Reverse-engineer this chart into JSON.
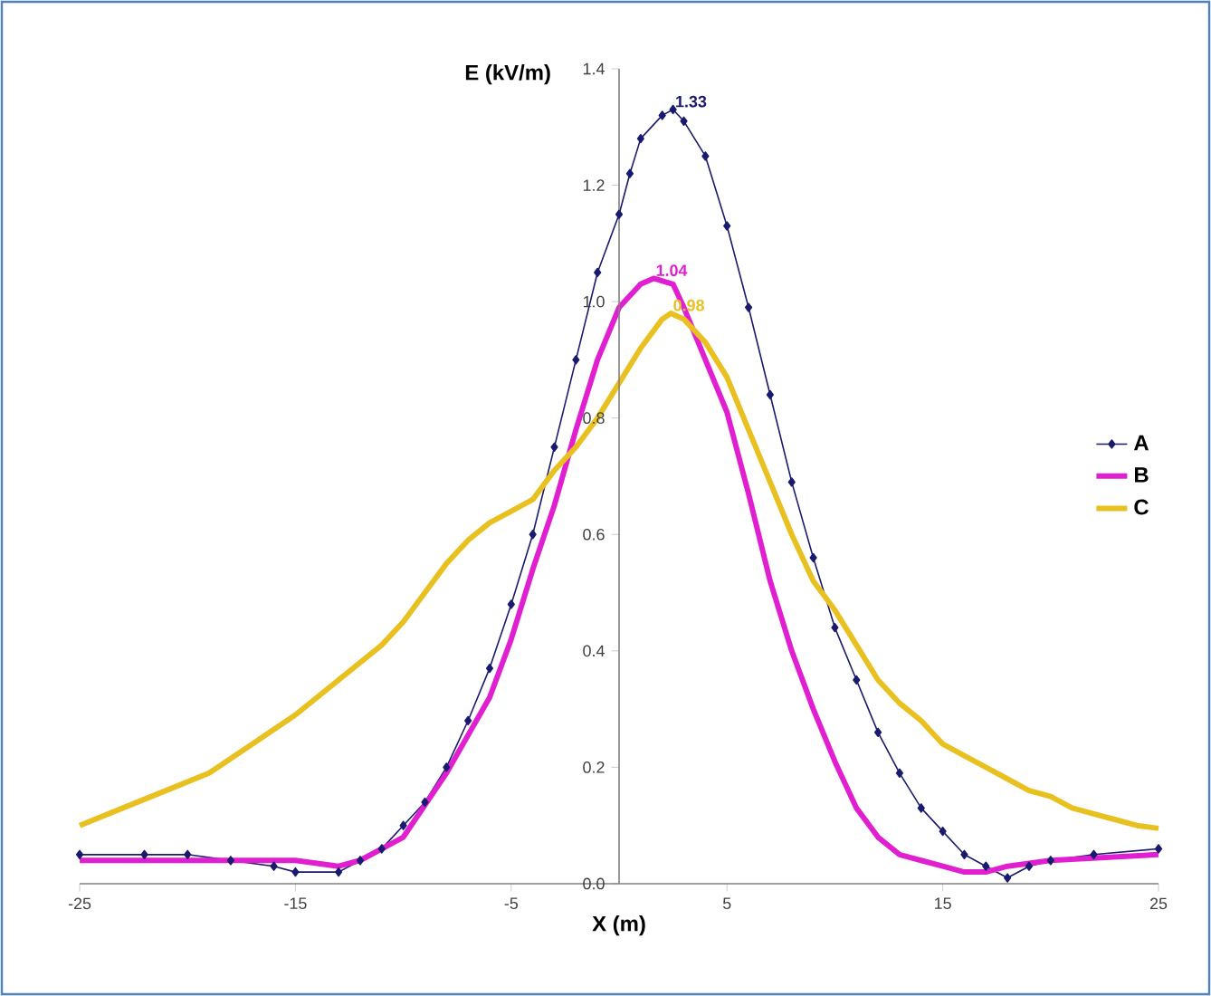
{
  "chart_data": {
    "type": "line",
    "xlabel": "X (m)",
    "ylabel": "E (kV/m)",
    "xlim": [
      -25,
      25
    ],
    "xticks": [
      -25,
      -15,
      -5,
      5,
      15,
      25
    ],
    "ylim": [
      0,
      1.4
    ],
    "yticks": [
      {
        "value": 0,
        "label": "0.0"
      },
      {
        "value": 0.2,
        "label": "0.2"
      },
      {
        "value": 0.4,
        "label": "0.4"
      },
      {
        "value": 0.6,
        "label": "0.6"
      },
      {
        "value": 0.8,
        "label": "0.8"
      },
      {
        "value": 1.0,
        "label": "1.0"
      },
      {
        "value": 1.2,
        "label": "1.2"
      },
      {
        "value": 1.4,
        "label": "1.4"
      }
    ],
    "legend": "right",
    "grid": false,
    "series": [
      {
        "name": "A",
        "color": "#1a1a6e",
        "marker": "diamond",
        "x": [
          -25,
          -22,
          -20,
          -18,
          -16,
          -15,
          -13,
          -12,
          -11,
          -10,
          -9,
          -8,
          -7,
          -6,
          -5,
          -4,
          -3,
          -2,
          -1,
          0,
          0.5,
          1,
          2,
          2.5,
          3,
          4,
          5,
          6,
          7,
          8,
          9,
          10,
          11,
          12,
          13,
          14,
          15,
          16,
          17,
          18,
          19,
          20,
          22,
          25
        ],
        "values": [
          0.05,
          0.05,
          0.05,
          0.04,
          0.03,
          0.02,
          0.02,
          0.04,
          0.06,
          0.1,
          0.14,
          0.2,
          0.28,
          0.37,
          0.48,
          0.6,
          0.75,
          0.9,
          1.05,
          1.15,
          1.22,
          1.28,
          1.32,
          1.33,
          1.31,
          1.25,
          1.13,
          0.99,
          0.84,
          0.69,
          0.56,
          0.44,
          0.35,
          0.26,
          0.19,
          0.13,
          0.09,
          0.05,
          0.03,
          0.01,
          0.03,
          0.04,
          0.05,
          0.06
        ]
      },
      {
        "name": "B",
        "color": "#e020d0",
        "x": [
          -25,
          -20,
          -15,
          -13,
          -12,
          -10,
          -8,
          -6,
          -5,
          -4,
          -3,
          -2,
          -1,
          0,
          1,
          1.6,
          2.5,
          3,
          4,
          5,
          6,
          7,
          8,
          9,
          10,
          11,
          12,
          13,
          14,
          15,
          16,
          17,
          18,
          20,
          25
        ],
        "values": [
          0.04,
          0.04,
          0.04,
          0.03,
          0.04,
          0.08,
          0.19,
          0.32,
          0.42,
          0.54,
          0.65,
          0.78,
          0.9,
          0.99,
          1.03,
          1.04,
          1.03,
          0.99,
          0.9,
          0.81,
          0.67,
          0.52,
          0.4,
          0.3,
          0.21,
          0.13,
          0.08,
          0.05,
          0.04,
          0.03,
          0.02,
          0.02,
          0.03,
          0.04,
          0.05
        ]
      },
      {
        "name": "C",
        "color": "#e8c020",
        "x": [
          -25,
          -23,
          -21,
          -19,
          -17,
          -15,
          -13,
          -11,
          -10,
          -9,
          -8,
          -7,
          -6,
          -5,
          -4,
          -3,
          -2,
          -1,
          0,
          1,
          2,
          2.4,
          3,
          4,
          5,
          6,
          7,
          8,
          9,
          10,
          11,
          12,
          13,
          14,
          15,
          16,
          17,
          18,
          19,
          20,
          21,
          22,
          23,
          24,
          25
        ],
        "values": [
          0.1,
          0.13,
          0.16,
          0.19,
          0.24,
          0.29,
          0.35,
          0.41,
          0.45,
          0.5,
          0.55,
          0.59,
          0.62,
          0.64,
          0.66,
          0.71,
          0.75,
          0.8,
          0.86,
          0.92,
          0.97,
          0.98,
          0.97,
          0.93,
          0.87,
          0.78,
          0.69,
          0.6,
          0.52,
          0.47,
          0.41,
          0.35,
          0.31,
          0.28,
          0.24,
          0.22,
          0.2,
          0.18,
          0.16,
          0.15,
          0.13,
          0.12,
          0.11,
          0.1,
          0.095
        ]
      }
    ],
    "annotations": [
      {
        "text": "1.33",
        "x": 2.5,
        "y": 1.33
      },
      {
        "text": "1.04",
        "x": 1.6,
        "y": 1.04
      },
      {
        "text": "0.98",
        "x": 2.4,
        "y": 0.98
      }
    ]
  }
}
